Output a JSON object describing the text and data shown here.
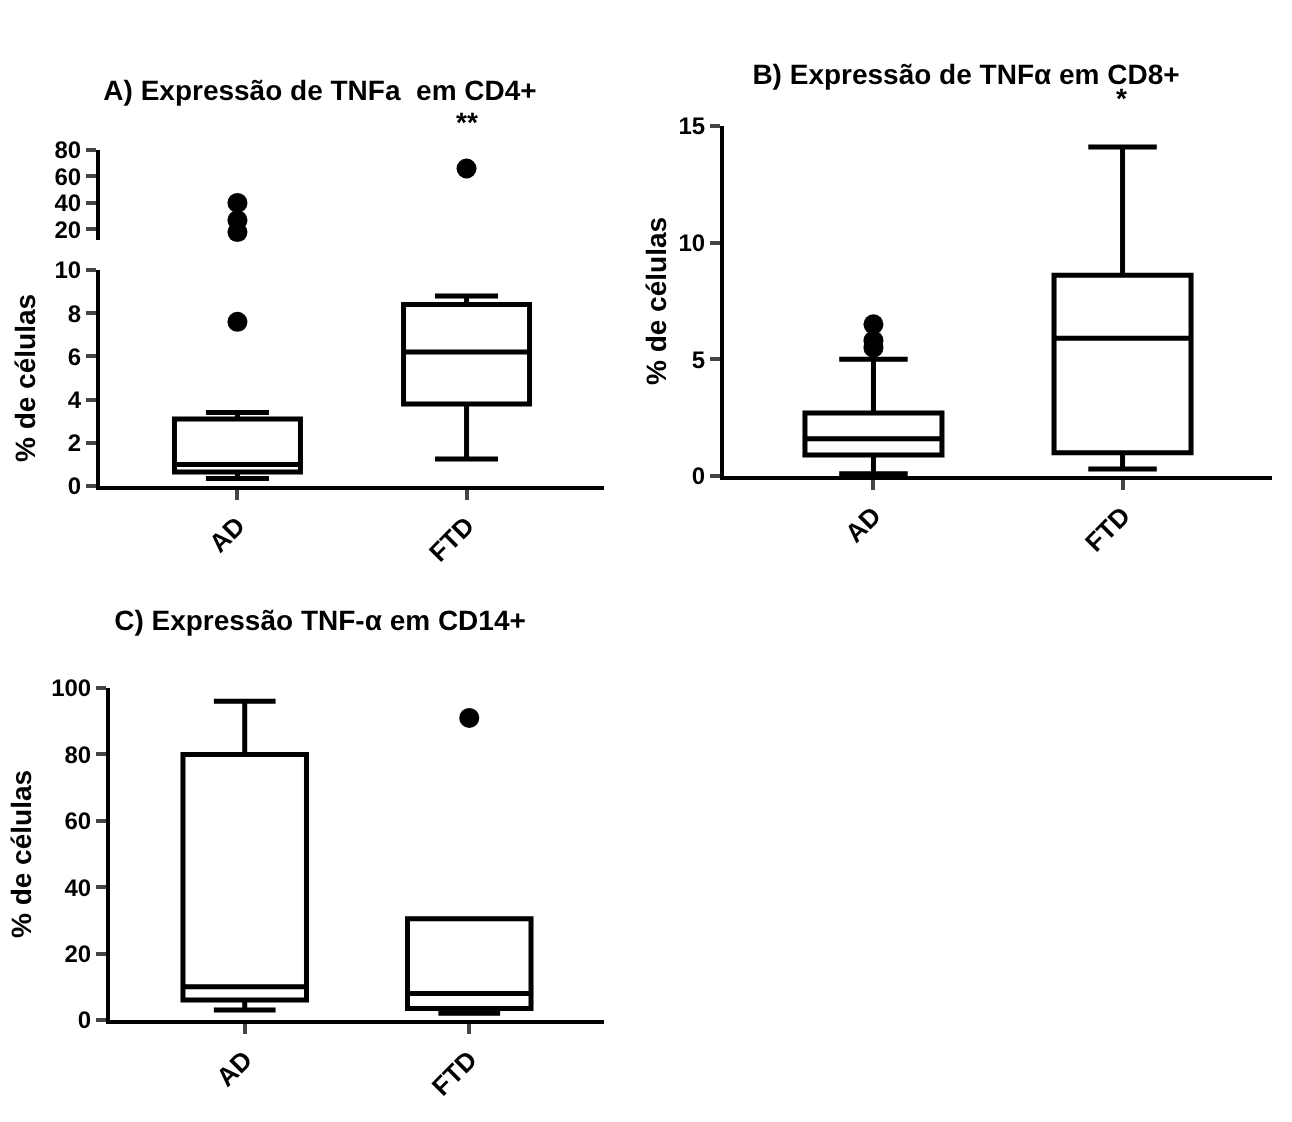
{
  "chart_data": [
    {
      "type": "scatter",
      "title": "A) Expressão de TNFa  em CD4+",
      "categories": [
        "AD",
        "FTD"
      ],
      "ylim": [
        12,
        80
      ],
      "yticks": [
        20,
        40,
        60,
        80
      ],
      "tick_labels": "y",
      "marker": "circle",
      "annotations": [
        "**"
      ],
      "series": [
        {
          "color": "#000000",
          "x": [
            "AD",
            "AD",
            "AD",
            "FTD"
          ],
          "values": [
            40,
            27,
            18,
            66
          ]
        }
      ]
    },
    {
      "type": "box",
      "ylabel": "% de células",
      "categories": [
        "AD",
        "FTD"
      ],
      "ylim": [
        0,
        10
      ],
      "yticks": [
        0,
        2,
        4,
        6,
        8,
        10
      ],
      "color": "#000000",
      "marker": "circle",
      "boxes": [
        {
          "low": 0.35,
          "q1": 0.65,
          "median": 1.0,
          "q3": 3.1,
          "high": 3.4,
          "outliers": [
            7.6
          ]
        },
        {
          "low": 1.25,
          "q1": 3.8,
          "median": 6.2,
          "q3": 8.4,
          "high": 8.8
        }
      ]
    },
    {
      "type": "box",
      "title": "B) Expressão de TNFα em CD8+",
      "ylabel": "% de células",
      "categories": [
        "AD",
        "FTD"
      ],
      "ylim": [
        0,
        15
      ],
      "yticks": [
        0,
        5,
        10,
        15
      ],
      "color": "#000000",
      "marker": "circle",
      "annotations": [
        "*"
      ],
      "boxes": [
        {
          "low": 0.1,
          "q1": 0.9,
          "median": 1.6,
          "q3": 2.7,
          "high": 5.0,
          "outliers": [
            5.5,
            5.8,
            6.5
          ]
        },
        {
          "low": 0.3,
          "q1": 1.0,
          "median": 5.9,
          "q3": 8.6,
          "high": 14.1
        }
      ]
    },
    {
      "type": "box",
      "title": "C) Expressão TNF-α em CD14+",
      "ylabel": "% de células",
      "categories": [
        "AD",
        "FTD"
      ],
      "ylim": [
        0,
        100
      ],
      "yticks": [
        0,
        20,
        40,
        60,
        80,
        100
      ],
      "color": "#000000",
      "marker": "circle",
      "boxes": [
        {
          "low": 3,
          "q1": 6,
          "median": 10,
          "q3": 80,
          "high": 96
        },
        {
          "low": 2,
          "q1": 3.5,
          "median": 8,
          "q3": 30.5,
          "high": 30.5,
          "outliers": [
            91
          ]
        }
      ]
    }
  ]
}
